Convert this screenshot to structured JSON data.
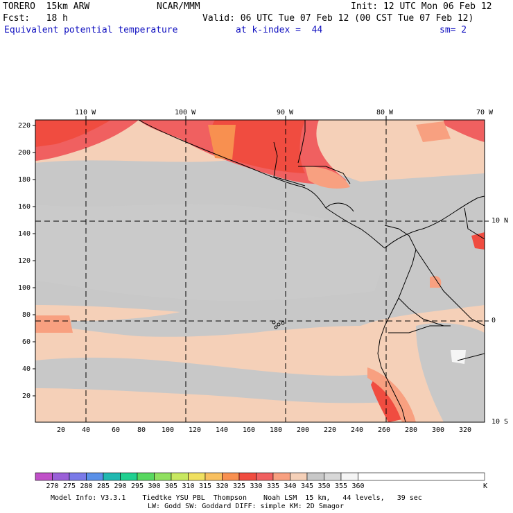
{
  "header": {
    "model": "TORERO  15km ARW",
    "center": "NCAR/MMM",
    "init": "Init: 12 UTC Mon 06 Feb 12",
    "fcst": "Fcst:   18 h",
    "valid": "Valid: 06 UTC Tue 07 Feb 12 (00 CST Tue 07 Feb 12)",
    "field": "Equivalent potential temperature",
    "level": "at k-index =  44",
    "smooth": "sm= 2"
  },
  "top_lon_labels": [
    "110 W",
    "100 W",
    "90 W",
    "80 W",
    "70 W"
  ],
  "right_lat_labels": [
    "10 N",
    "0",
    "10 S"
  ],
  "y_ticks": [
    "220",
    "200",
    "180",
    "160",
    "140",
    "120",
    "100",
    "80",
    "60",
    "40",
    "20"
  ],
  "x_ticks": [
    "20",
    "40",
    "60",
    "80",
    "100",
    "120",
    "140",
    "160",
    "180",
    "200",
    "220",
    "240",
    "260",
    "280",
    "300",
    "320"
  ],
  "legend": {
    "labels": [
      "270",
      "275",
      "280",
      "285",
      "290",
      "295",
      "300",
      "305",
      "310",
      "315",
      "320",
      "325",
      "330",
      "335",
      "340",
      "345",
      "350",
      "355",
      "360"
    ],
    "unit": "K",
    "colors": [
      "#c050c8",
      "#9a60d8",
      "#7a7ae8",
      "#5a90e8",
      "#20b8b0",
      "#20d090",
      "#58d860",
      "#90e060",
      "#c8e860",
      "#f0e060",
      "#f8c060",
      "#f89050",
      "#f04c40",
      "#f06060",
      "#f8a080",
      "#f5d0b8",
      "#c8c8c8",
      "#d8d8d8",
      "#f5f5f5"
    ]
  },
  "footer": {
    "line1": "Model Info: V3.3.1    Tiedtke YSU PBL  Thompson    Noah LSM  15 km,   44 levels,   39 sec",
    "line2": "LW: Godd SW: Goddard DIFF: simple KM: 2D Smagor"
  }
}
